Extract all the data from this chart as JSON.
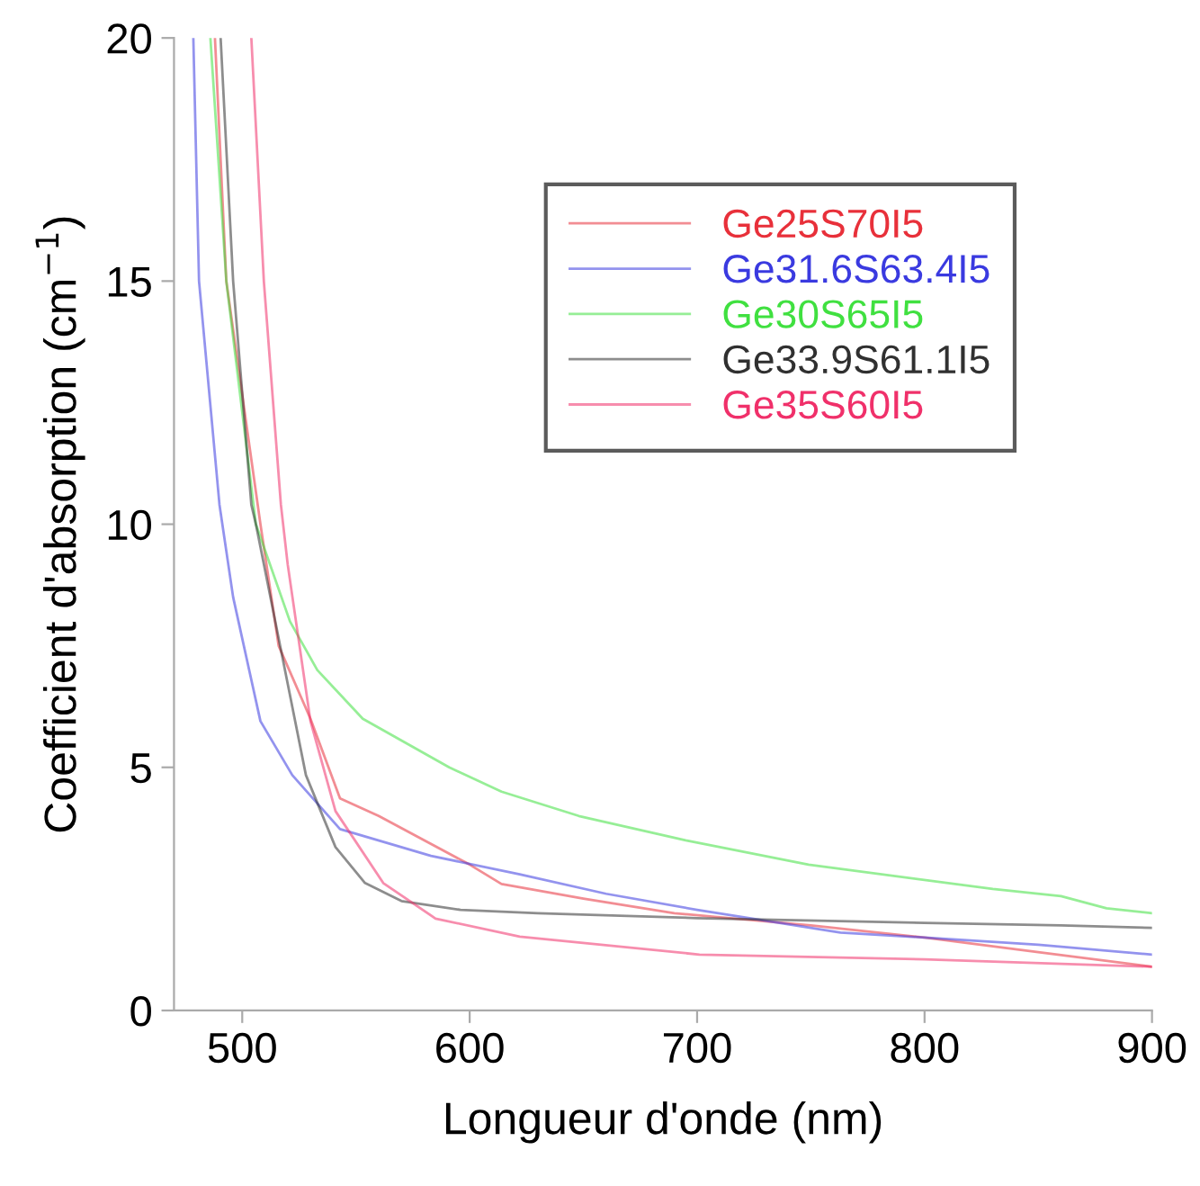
{
  "chart_data": {
    "type": "line",
    "xlabel": "Longueur d'onde (nm)",
    "ylabel": "Coefficient d'absorption (cm$^{−1}$)",
    "xlim": [
      470,
      900
    ],
    "ylim": [
      0,
      20
    ],
    "xticks": [
      500,
      600,
      700,
      800,
      900
    ],
    "yticks": [
      0,
      5,
      10,
      15,
      20
    ],
    "grid": false,
    "legend": "top right",
    "marker": "none",
    "line_style": "solid",
    "series": [
      {
        "name": "Ge25S70I5",
        "color": "#e8303a",
        "x": [
          488,
          493,
          508,
          516,
          530,
          543,
          560,
          600,
          614,
          650,
          690,
          750,
          800,
          850,
          900
        ],
        "values": [
          20,
          15,
          10,
          7.5,
          6,
          4.36,
          4,
          3,
          2.6,
          2.3,
          2,
          1.75,
          1.5,
          1.2,
          0.9
        ]
      },
      {
        "name": "Ge31.6S63.4I5",
        "color": "#3a3ae0",
        "x": [
          478.5,
          481,
          490,
          496,
          508,
          522,
          543,
          583,
          622,
          660,
          700,
          763,
          800,
          850,
          900
        ],
        "values": [
          20,
          15,
          10.4,
          8.5,
          5.95,
          4.84,
          3.73,
          3.18,
          2.8,
          2.4,
          2.07,
          1.6,
          1.5,
          1.35,
          1.15
        ]
      },
      {
        "name": "Ge30S65I5",
        "color": "#40e040",
        "x": [
          486,
          493,
          506,
          521,
          533,
          553,
          591,
          614,
          648,
          695,
          749,
          830,
          860,
          880,
          900
        ],
        "values": [
          20,
          15,
          10,
          8,
          7,
          6,
          5,
          4.5,
          4,
          3.5,
          3,
          2.5,
          2.35,
          2.1,
          2
        ]
      },
      {
        "name": "Ge33.9S61.1I5",
        "color": "#303030",
        "x": [
          490.5,
          496,
          504,
          506,
          528,
          541,
          554,
          570,
          596,
          630,
          700,
          800,
          860,
          900
        ],
        "values": [
          20,
          15,
          10.4,
          10,
          4.84,
          3.36,
          2.62,
          2.25,
          2.07,
          2,
          1.9,
          1.8,
          1.75,
          1.7
        ]
      },
      {
        "name": "Ge35S60I5",
        "color": "#f0306a",
        "x": [
          504,
          509.5,
          517,
          520,
          530,
          541,
          562,
          585,
          622,
          701,
          800,
          900
        ],
        "values": [
          20,
          15,
          10.4,
          9.17,
          5.95,
          4.1,
          2.62,
          1.89,
          1.52,
          1.15,
          1.05,
          0.9
        ]
      }
    ]
  }
}
